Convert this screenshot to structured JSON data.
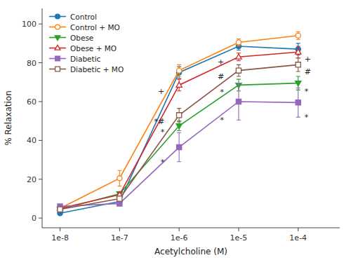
{
  "chart_data": {
    "type": "line",
    "xlabel": "Acetylcholine (M)",
    "ylabel": "% Relaxation",
    "log": "x",
    "grid": false,
    "legend": "upper left",
    "x": [
      1e-08,
      1e-07,
      1e-06,
      1e-05,
      0.0001
    ],
    "xlim": [
      5e-09,
      0.0005
    ],
    "xticks": [
      {
        "value": 1e-08,
        "label": "1e-8"
      },
      {
        "value": 1e-07,
        "label": "1e-7"
      },
      {
        "value": 1e-06,
        "label": "1e-6"
      },
      {
        "value": 1e-05,
        "label": "1e-5"
      },
      {
        "value": 0.0001,
        "label": "1e-4"
      }
    ],
    "ylim": [
      -5,
      108
    ],
    "yticks": [
      0,
      20,
      40,
      60,
      80,
      100
    ],
    "series": [
      {
        "name": "Control",
        "marker": "circle",
        "values": [
          2.5,
          8.5,
          75.0,
          88.5,
          87.0
        ],
        "errors": [
          0.8,
          1.2,
          3.0,
          2.0,
          3.0
        ]
      },
      {
        "name": "Control + MO",
        "marker": "circle-open",
        "values": [
          5.0,
          20.5,
          76.0,
          90.5,
          94.0
        ],
        "errors": [
          0.8,
          4.0,
          3.0,
          1.8,
          2.0
        ]
      },
      {
        "name": "Obese",
        "marker": "triangle-down",
        "values": [
          4.5,
          12.5,
          47.5,
          68.5,
          69.5
        ],
        "errors": [
          0.8,
          1.2,
          2.5,
          3.0,
          3.5
        ]
      },
      {
        "name": "Obese + MO",
        "marker": "triangle-up-open",
        "values": [
          5.0,
          12.0,
          68.5,
          83.0,
          85.5
        ],
        "errors": [
          0.8,
          1.2,
          3.0,
          2.0,
          3.0
        ]
      },
      {
        "name": "Diabetic",
        "marker": "square",
        "values": [
          6.0,
          7.5,
          36.5,
          60.0,
          59.5
        ],
        "errors": [
          0.8,
          1.2,
          7.5,
          9.5,
          7.5
        ]
      },
      {
        "name": "Diabetic + MO",
        "marker": "square-open",
        "values": [
          4.5,
          10.0,
          53.0,
          76.0,
          79.0
        ],
        "errors": [
          0.8,
          1.2,
          3.5,
          3.0,
          3.5
        ]
      }
    ],
    "annotations": [
      {
        "text": "+",
        "x": 6e-07,
        "y": 65.5
      },
      {
        "text": "*#",
        "x": 6e-07,
        "y": 50.0
      },
      {
        "text": "*",
        "x": 6e-07,
        "y": 44.5
      },
      {
        "text": "*",
        "x": 6e-07,
        "y": 29.0
      },
      {
        "text": "+",
        "x": 6e-06,
        "y": 80.5
      },
      {
        "text": "#",
        "x": 6e-06,
        "y": 73.0
      },
      {
        "text": "*",
        "x": 6e-06,
        "y": 65.0
      },
      {
        "text": "*",
        "x": 6e-06,
        "y": 50.5
      },
      {
        "text": "+",
        "x": 0.000118,
        "y": 82.0
      },
      {
        "text": "#",
        "x": 0.000118,
        "y": 75.5
      },
      {
        "text": "*",
        "x": 0.000118,
        "y": 65.5
      },
      {
        "text": "*",
        "x": 0.000118,
        "y": 52.0
      }
    ]
  }
}
